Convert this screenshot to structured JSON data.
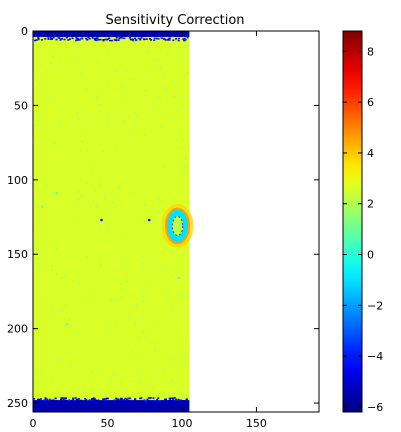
{
  "chart_data": {
    "type": "heatmap",
    "title": "Sensitivity Correction",
    "xlabel": "",
    "ylabel": "",
    "x_range": [
      0,
      192
    ],
    "y_range": [
      256,
      0
    ],
    "x_ticks": [
      0,
      50,
      100,
      150
    ],
    "y_ticks": [
      0,
      50,
      100,
      150,
      200,
      250
    ],
    "data_extent_x": [
      0,
      105
    ],
    "grid": false,
    "colormap": "jet",
    "colorbar": {
      "range": [
        -6.2,
        8.8
      ],
      "ticks": [
        -6,
        -4,
        -2,
        0,
        2,
        4,
        6,
        8
      ],
      "tick_labels": [
        "−6",
        "−4",
        "−2",
        "0",
        "2",
        "4",
        "6",
        "8"
      ]
    },
    "background_value": 2.6,
    "edge_rows": [
      {
        "rows": [
          0,
          4
        ],
        "value": -5.5
      },
      {
        "rows": [
          248,
          256
        ],
        "value": -5.5
      }
    ],
    "features": [
      {
        "name": "ring",
        "center_x": 97,
        "center_y": 131,
        "radius_x": 7,
        "radius_y": 11,
        "ring_value": -1,
        "outer_value": 3.8,
        "core_value": 2.2
      },
      {
        "name": "dot",
        "x": 46,
        "y": 127,
        "value": -4
      },
      {
        "name": "dot",
        "x": 78,
        "y": 127,
        "value": -4
      },
      {
        "name": "dot",
        "x": 6,
        "y": 118,
        "value": 1
      },
      {
        "name": "dot",
        "x": 16,
        "y": 109,
        "value": 1
      },
      {
        "name": "dot",
        "x": 98,
        "y": 166,
        "value": 1
      },
      {
        "name": "dot",
        "x": 23,
        "y": 197,
        "value": 1
      }
    ]
  }
}
